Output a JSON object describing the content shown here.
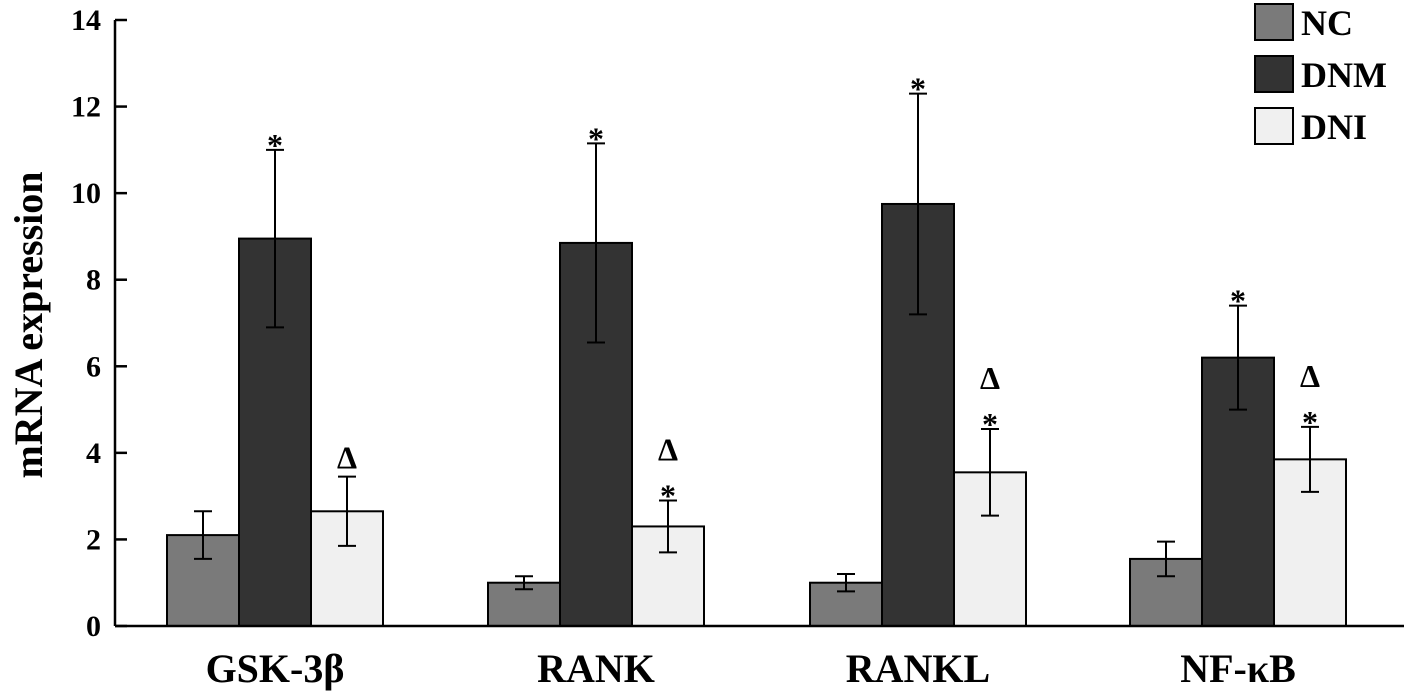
{
  "chart_data": {
    "type": "bar",
    "title": "",
    "xlabel": "",
    "ylabel": "mRNA expression",
    "ylim": [
      0,
      14
    ],
    "yticks": [
      0,
      2,
      4,
      6,
      8,
      10,
      12,
      14
    ],
    "grid": false,
    "legend_position": "top-right",
    "categories": [
      "GSK-3β",
      "RANK",
      "RANKL",
      "NF-κB"
    ],
    "series": [
      {
        "name": "NC",
        "color": "#7a7a7a",
        "values": [
          2.1,
          1.0,
          1.0,
          1.55
        ],
        "errors": [
          0.55,
          0.15,
          0.2,
          0.4
        ]
      },
      {
        "name": "DNM",
        "color": "#333333",
        "values": [
          8.95,
          8.85,
          9.75,
          6.2
        ],
        "errors": [
          2.05,
          2.3,
          2.55,
          1.2
        ]
      },
      {
        "name": "DNI",
        "color": "#f0f0f0",
        "values": [
          2.65,
          2.3,
          3.55,
          3.85
        ],
        "errors": [
          0.8,
          0.6,
          1.0,
          0.75
        ]
      }
    ],
    "annotations": [
      [
        "",
        "*",
        "Δ"
      ],
      [
        "",
        "*",
        "Δ\n*"
      ],
      [
        "",
        "*",
        "Δ\n*"
      ],
      [
        "",
        "*",
        "Δ\n*"
      ]
    ]
  }
}
